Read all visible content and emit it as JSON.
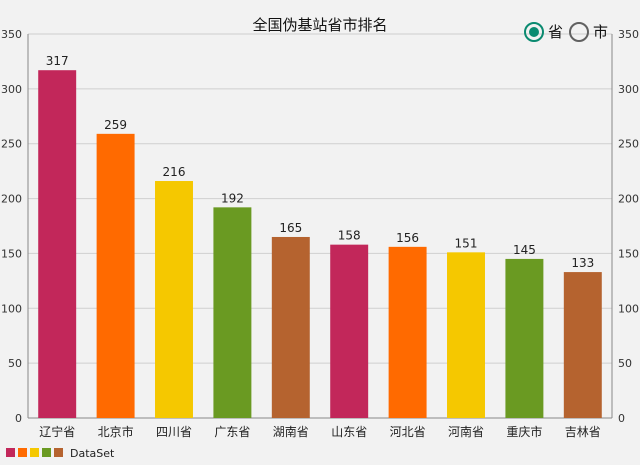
{
  "radio": {
    "options": [
      {
        "label": "省",
        "checked": true
      },
      {
        "label": "市",
        "checked": false
      }
    ],
    "accent": "#0a8a70"
  },
  "chart_data": {
    "type": "bar",
    "title": "全国伪基站省市排名",
    "categories": [
      "辽宁省",
      "北京市",
      "四川省",
      "广东省",
      "湖南省",
      "山东省",
      "河北省",
      "河南省",
      "重庆市",
      "吉林省"
    ],
    "values": [
      317,
      259,
      216,
      192,
      165,
      158,
      156,
      151,
      145,
      133
    ],
    "colors": [
      "#c2275a",
      "#ff6a00",
      "#f5c800",
      "#6a9a22",
      "#b5632f",
      "#c2275a",
      "#ff6a00",
      "#f5c800",
      "#6a9a22",
      "#b5632f"
    ],
    "ylim": [
      0,
      350
    ],
    "yticks": [
      0,
      50,
      100,
      150,
      200,
      250,
      300,
      350
    ],
    "grid": true,
    "legend": {
      "position": "bottom-left",
      "label": "DataSet",
      "colors": [
        "#c2275a",
        "#ff6a00",
        "#f5c800",
        "#6a9a22",
        "#b5632f"
      ]
    }
  }
}
